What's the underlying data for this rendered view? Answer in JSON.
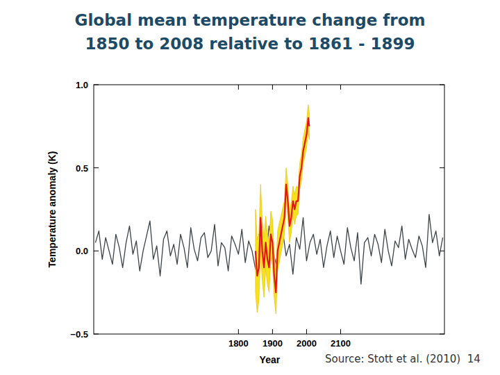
{
  "slide": {
    "title": "Global mean temperature change from 1850 to 2008 relative to 1861 - 1899",
    "source": "Source: Stott et al. (2010)",
    "page_number": "14"
  },
  "chart_data": {
    "type": "line",
    "x_label": "Year",
    "y_label": "Temperature anomaly (K)",
    "xlim": [
      1375,
      2405
    ],
    "xticks": [
      1800,
      1900,
      2000,
      2100
    ],
    "ylim": [
      -0.5,
      1.0
    ],
    "yticks": [
      {
        "value": -0.5,
        "label": "−0.5"
      },
      {
        "value": 0.0,
        "label": "0.0"
      },
      0.5,
      {
        "value": 1.0,
        "label": "1.0"
      }
    ],
    "grid": false,
    "series": [
      {
        "color": "#3c4246",
        "x": [
          1380,
          1390,
          1400,
          1410,
          1420,
          1430,
          1440,
          1450,
          1460,
          1470,
          1480,
          1490,
          1500,
          1510,
          1520,
          1530,
          1540,
          1550,
          1560,
          1570,
          1580,
          1590,
          1600,
          1610,
          1620,
          1630,
          1640,
          1650,
          1660,
          1670,
          1680,
          1690,
          1700,
          1710,
          1720,
          1730,
          1740,
          1750,
          1760,
          1770,
          1780,
          1790,
          1800,
          1810,
          1820,
          1830,
          1840,
          1850,
          1860,
          1870,
          1880,
          1890,
          1900,
          1910,
          1920,
          1930,
          1940,
          1950,
          1960,
          1970,
          1980,
          1990,
          2000,
          2010,
          2020,
          2030,
          2040,
          2050,
          2060,
          2070,
          2080,
          2090,
          2100,
          2110,
          2120,
          2130,
          2140,
          2150,
          2160,
          2170,
          2180,
          2190,
          2200,
          2210,
          2220,
          2230,
          2240,
          2250,
          2260,
          2270,
          2280,
          2290,
          2300,
          2310,
          2320,
          2330,
          2340,
          2350,
          2360,
          2370,
          2380,
          2390,
          2400
        ],
        "values": [
          0.05,
          0.12,
          -0.05,
          0.08,
          0.0,
          -0.08,
          0.1,
          0.02,
          -0.1,
          0.05,
          0.15,
          -0.02,
          0.06,
          -0.12,
          0.0,
          0.09,
          0.18,
          -0.05,
          0.03,
          -0.15,
          0.07,
          0.12,
          -0.03,
          0.04,
          -0.08,
          0.1,
          0.02,
          -0.1,
          0.14,
          0.01,
          -0.06,
          0.08,
          0.11,
          -0.04,
          0.0,
          0.16,
          -0.09,
          0.05,
          0.02,
          -0.12,
          0.09,
          0.04,
          -0.02,
          0.13,
          -0.07,
          0.06,
          0.0,
          -0.11,
          0.1,
          0.03,
          -0.05,
          0.15,
          0.02,
          -0.08,
          0.07,
          0.12,
          -0.03,
          0.04,
          -0.14,
          0.08,
          0.01,
          0.2,
          -0.06,
          0.05,
          0.1,
          -0.02,
          0.07,
          -0.1,
          0.03,
          0.12,
          -0.04,
          0.09,
          0.0,
          -0.08,
          0.14,
          0.02,
          -0.06,
          0.11,
          -0.2,
          0.05,
          0.08,
          -0.03,
          0.1,
          0.04,
          -0.07,
          0.13,
          0.0,
          -0.09,
          0.06,
          0.02,
          0.15,
          -0.05,
          0.07,
          0.01,
          -0.04,
          0.09,
          0.03,
          -0.1,
          0.22,
          0.05,
          0.12,
          -0.03,
          0.08
        ]
      },
      {
        "color": "#e3151c",
        "x": [
          1850,
          1855,
          1860,
          1865,
          1870,
          1875,
          1880,
          1885,
          1890,
          1895,
          1900,
          1905,
          1910,
          1915,
          1920,
          1925,
          1930,
          1935,
          1940,
          1945,
          1950,
          1955,
          1960,
          1965,
          1970,
          1975,
          1980,
          1985,
          1990,
          1995,
          2000,
          2005,
          2008
        ],
        "values": [
          0.0,
          -0.15,
          -0.1,
          0.2,
          0.0,
          -0.1,
          0.05,
          -0.05,
          -0.1,
          0.1,
          0.05,
          -0.15,
          -0.25,
          0.0,
          0.05,
          0.1,
          0.15,
          0.2,
          0.4,
          0.3,
          0.15,
          0.2,
          0.3,
          0.25,
          0.3,
          0.3,
          0.45,
          0.5,
          0.6,
          0.65,
          0.7,
          0.8,
          0.75
        ],
        "lower": [
          -0.25,
          -0.37,
          -0.3,
          0.0,
          -0.18,
          -0.28,
          -0.11,
          -0.2,
          -0.25,
          -0.04,
          -0.09,
          -0.28,
          -0.38,
          -0.12,
          -0.07,
          -0.01,
          0.04,
          0.1,
          0.3,
          0.2,
          0.05,
          0.11,
          0.21,
          0.16,
          0.21,
          0.22,
          0.37,
          0.42,
          0.52,
          0.57,
          0.62,
          0.72,
          0.67
        ],
        "upper": [
          0.25,
          0.07,
          0.1,
          0.4,
          0.18,
          0.08,
          0.21,
          0.1,
          0.05,
          0.24,
          0.19,
          -0.02,
          -0.12,
          0.12,
          0.17,
          0.21,
          0.26,
          0.3,
          0.5,
          0.4,
          0.25,
          0.29,
          0.39,
          0.34,
          0.39,
          0.38,
          0.53,
          0.58,
          0.68,
          0.73,
          0.78,
          0.88,
          0.83
        ]
      }
    ]
  }
}
